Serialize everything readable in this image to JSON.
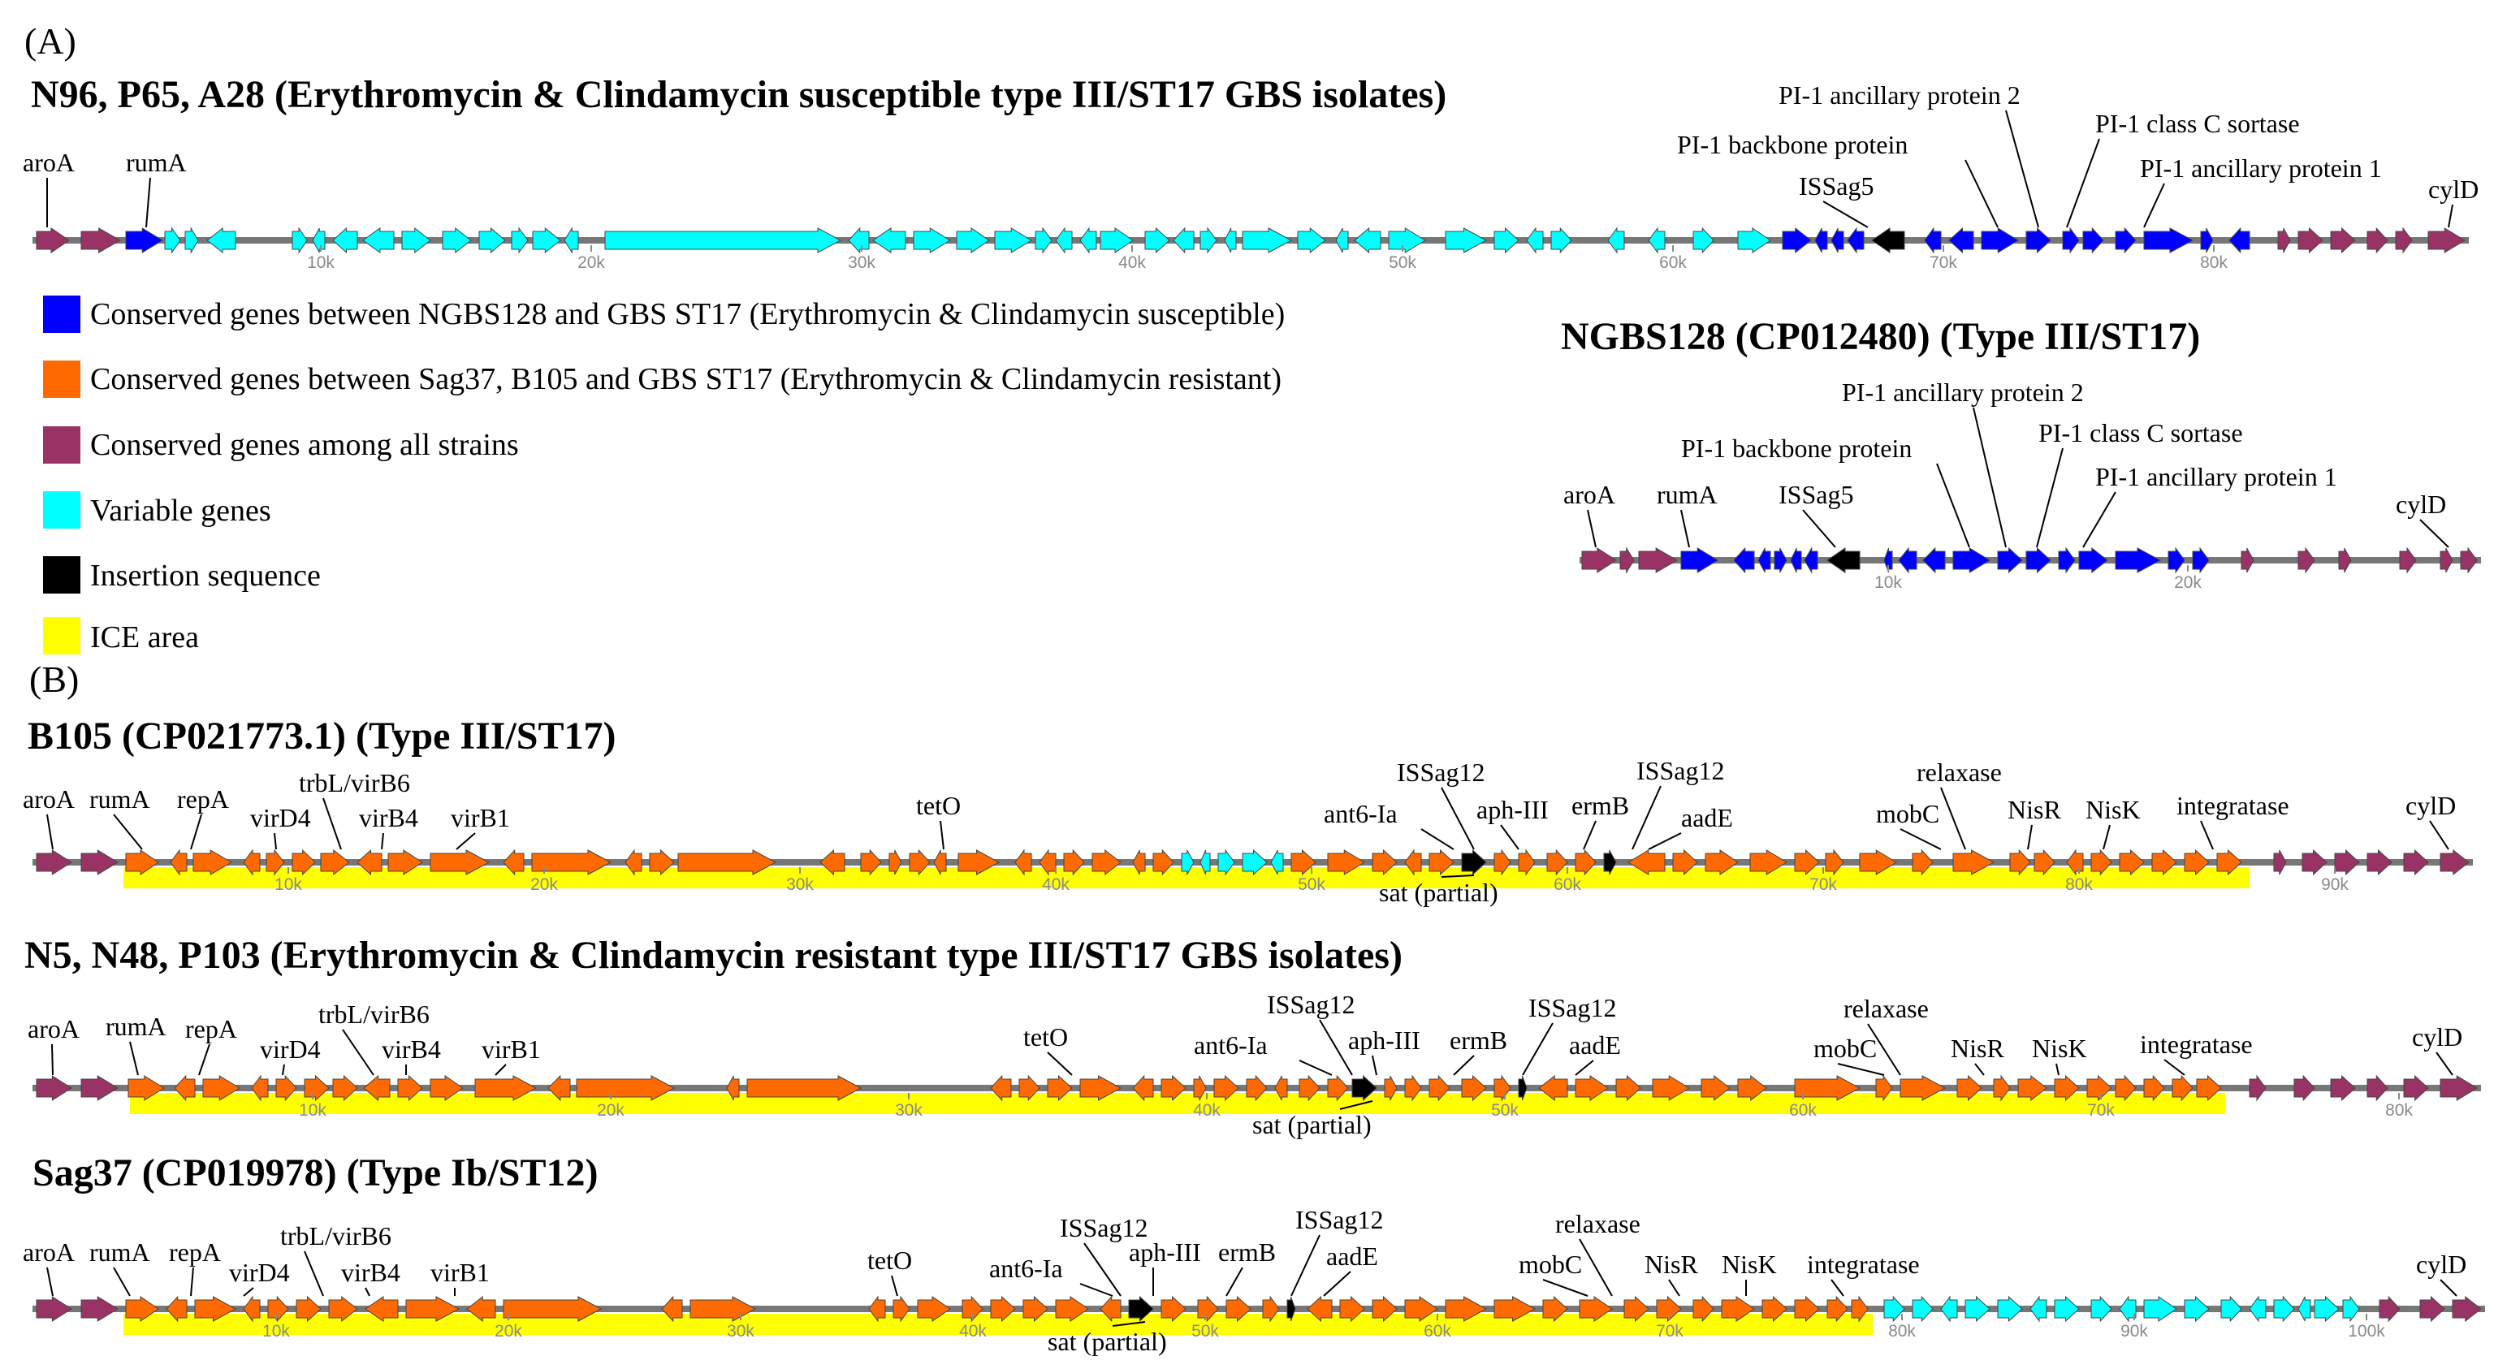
{
  "panel_labels": {
    "a": "(A)",
    "b": "(B)"
  },
  "colors": {
    "conserved_ngbs": "#0000ff",
    "conserved_sag": "#ff6a00",
    "conserved_all": "#993366",
    "variable": "#00ffff",
    "insertion": "#000000",
    "ice": "#ffff00",
    "backbone": "#777777"
  },
  "legend": [
    {
      "label": "Conserved genes between NGBS128 and GBS ST17 (Erythromycin & Clindamycin susceptible)",
      "color_key": "conserved_ngbs"
    },
    {
      "label": "Conserved genes between Sag37, B105 and GBS ST17 (Erythromycin & Clindamycin resistant)",
      "color_key": "conserved_sag"
    },
    {
      "label": "Conserved genes among all strains",
      "color_key": "conserved_all"
    },
    {
      "label": "Variable genes",
      "color_key": "variable"
    },
    {
      "label": "Insertion sequence",
      "color_key": "insertion"
    },
    {
      "label": "ICE area",
      "color_key": "ice"
    }
  ],
  "tracks": [
    {
      "id": "st17-susceptible",
      "title": "N96, P65, A28 (Erythromycin & Clindamycin susceptible type III/ST17 GBS isolates)",
      "ticks": [
        "10k",
        "20k",
        "30k",
        "40k",
        "50k",
        "60k",
        "70k",
        "80k"
      ],
      "labels": [
        "aroA",
        "rumA",
        "ISSag5",
        "PI-1 backbone protein",
        "PI-1 ancillary  protein  2",
        "PI-1 class  C sortase",
        "PI-1 ancillary  protein  1",
        "cylD"
      ]
    },
    {
      "id": "ngbs128",
      "title": "NGBS128 (CP012480) (Type III/ST17)",
      "ticks": [
        "10k",
        "20k"
      ],
      "labels": [
        "aroA",
        "rumA",
        "ISSag5",
        "PI-1 backbone protein",
        "PI-1 ancillary  protein  2",
        "PI-1 class  C sortase",
        "PI-1 ancillary  protein  1",
        "cylD"
      ]
    },
    {
      "id": "b105",
      "title": "B105 (CP021773.1) (Type III/ST17)",
      "ticks": [
        "10k",
        "20k",
        "30k",
        "40k",
        "50k",
        "60k",
        "70k",
        "80k",
        "90k"
      ],
      "labels": [
        "aroA",
        "rumA",
        "repA",
        "virD4",
        "trbL/virB6",
        "virB4",
        "virB1",
        "tetO",
        "ant6-Ia",
        "ISSag12",
        "sat (partial)",
        "aph-III",
        "ermB",
        "ISSag12",
        "aadE",
        "mobC",
        "relaxase",
        "NisR",
        "NisK",
        "integratase",
        "cylD"
      ]
    },
    {
      "id": "st17-resistant",
      "title": "N5, N48, P103 (Erythromycin & Clindamycin resistant type III/ST17 GBS isolates)",
      "ticks": [
        "10k",
        "20k",
        "30k",
        "40k",
        "50k",
        "60k",
        "70k",
        "80k"
      ],
      "labels": [
        "aroA",
        "rumA",
        "repA",
        "virD4",
        "trbL/virB6",
        "virB4",
        "virB1",
        "tetO",
        "ant6-Ia",
        "ISSag12",
        "aph-III",
        "sat (partial)",
        "ermB",
        "ISSag12",
        "aadE",
        "mobC",
        "relaxase",
        "NisR",
        "NisK",
        "integratase",
        "cylD"
      ]
    },
    {
      "id": "sag37",
      "title": "Sag37 (CP019978) (Type Ib/ST12)",
      "ticks": [
        "10k",
        "20k",
        "30k",
        "40k",
        "50k",
        "60k",
        "70k",
        "80k",
        "90k",
        "100k"
      ],
      "labels": [
        "aroA",
        "rumA",
        "repA",
        "virD4",
        "trbL/virB6",
        "virB4",
        "virB1",
        "tetO",
        "ant6-Ia",
        "ISSag12",
        "aph-III",
        "ermB",
        "sat (partial)",
        "ISSag12",
        "aadE",
        "mobC",
        "relaxase",
        "NisR",
        "NisK",
        "integratase",
        "cylD"
      ]
    }
  ]
}
